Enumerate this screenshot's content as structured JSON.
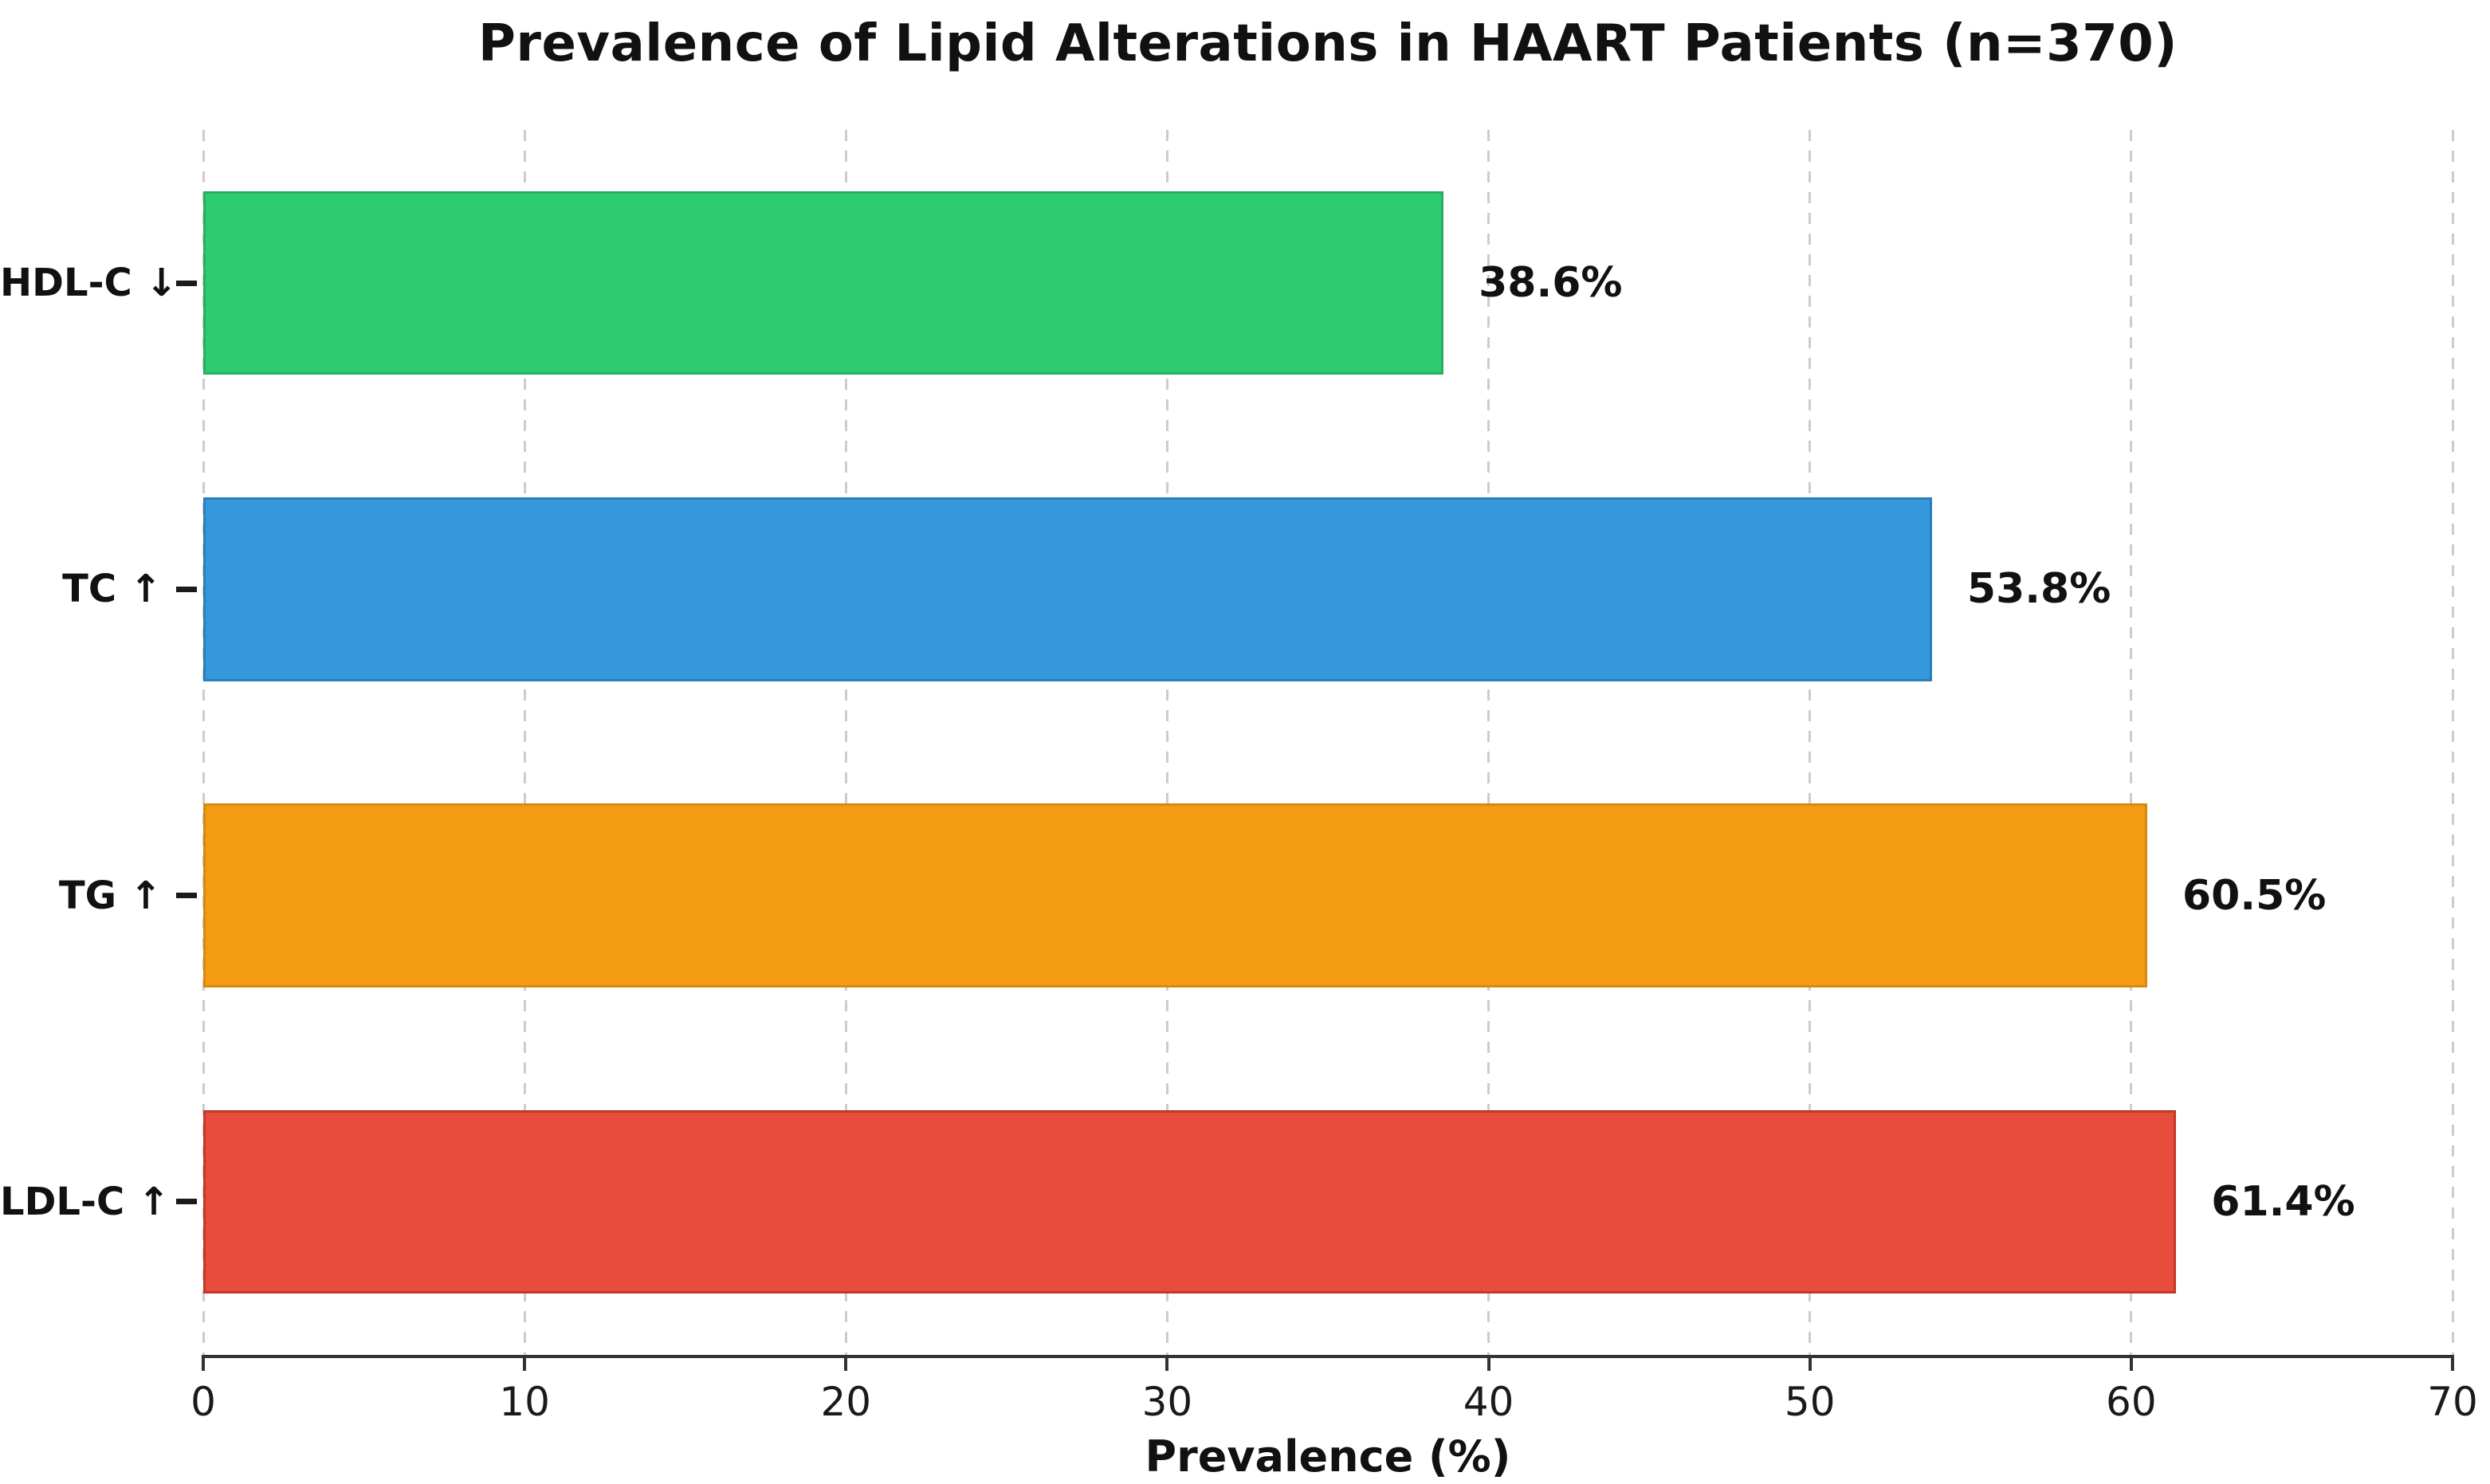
{
  "chart_data": {
    "type": "bar",
    "orientation": "horizontal",
    "title": "Prevalence of Lipid Alterations in HAART Patients (n=370)",
    "xlabel": "Prevalence (%)",
    "ylabel": "",
    "categories": [
      "HDL-C ↓",
      "TC ↑",
      "TG ↑",
      "LDL-C ↑"
    ],
    "values": [
      38.6,
      53.8,
      60.5,
      61.4
    ],
    "value_labels": [
      "38.6%",
      "53.8%",
      "60.5%",
      "61.4%"
    ],
    "bar_colors": [
      "#2ecc71",
      "#3498db",
      "#f39c12",
      "#e74c3c"
    ],
    "bar_edge_colors": [
      "#27ae60",
      "#2980b9",
      "#d68910",
      "#c0392b"
    ],
    "xlim": [
      0,
      70
    ],
    "x_ticks": [
      0,
      10,
      20,
      30,
      40,
      50,
      60,
      70
    ],
    "grid": "vertical-dashed",
    "gridline_color": "#cccccc",
    "axis_color": "#333333",
    "tick_color": "#1a1a1a",
    "text_color": "#111111",
    "background": "#ffffff",
    "legend": null,
    "category_order": "top-to-bottom",
    "bar_height_fraction": 0.6
  }
}
